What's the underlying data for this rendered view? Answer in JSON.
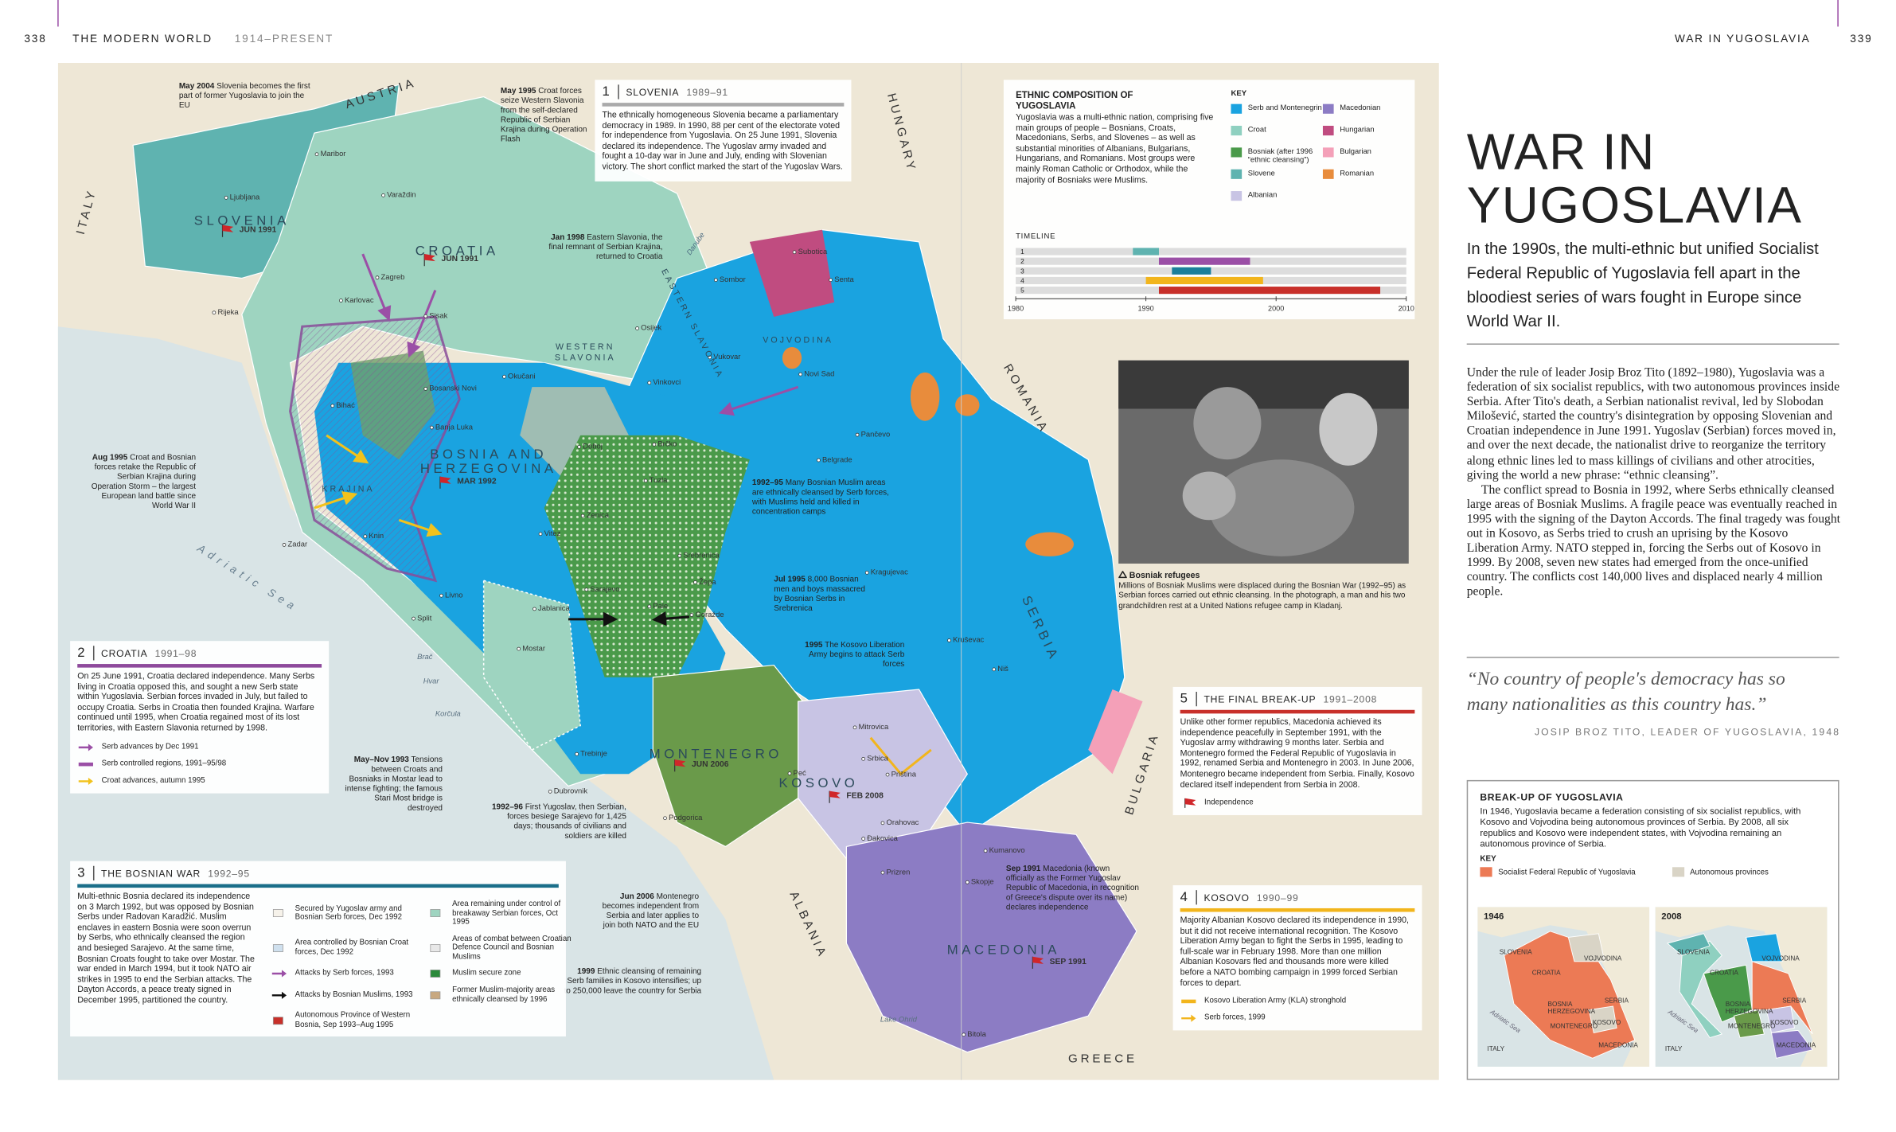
{
  "header": {
    "left_page": "338",
    "left_title": "THE MODERN WORLD",
    "left_period": "1914–PRESENT",
    "right_title": "WAR IN YUGOSLAVIA",
    "right_page": "339"
  },
  "article": {
    "title": "WAR IN YUGOSLAVIA",
    "intro": "In the 1990s, the multi-ethnic but unified Socialist Federal Republic of Yugoslavia fell apart in the bloodiest series of wars fought in Europe since World War II.",
    "body": [
      "Under the rule of leader Josip Broz Tito (1892–1980), Yugoslavia was a federation of six socialist republics, with two autonomous provinces inside Serbia. After Tito's death, a Serbian nationalist revival, led by Slobodan Milošević, started the country's disintegration by opposing Slovenian and Croatian independence in June 1991. Yugoslav (Serbian) forces moved in, and over the next decade, the nationalist drive to reorganize the territory along ethnic lines led to mass killings of civilians and other atrocities, giving the world a new phrase: “ethnic cleansing”.",
      "The conflict spread to Bosnia in 1992, where Serbs ethnically cleansed large areas of Bosniak Muslims. A fragile peace was eventually reached in 1995 with the signing of the Dayton Accords. The final tragedy was fought out in Kosovo, as Serbs tried to crush an uprising by the Kosovo Liberation Army. NATO stepped in, forcing the Serbs out of Kosovo in 1999. By 2008, seven new states had emerged from the once-unified country. The conflicts cost 140,000 lives and displaced nearly 4 million people."
    ],
    "quote": "“No country of people's democracy has so many nationalities as this country has.”",
    "quote_source": "JOSIP BROZ TITO, LEADER OF YUGOSLAVIA, 1948"
  },
  "breakup_box": {
    "title": "BREAK-UP OF YUGOSLAVIA",
    "text": "In 1946, Yugoslavia became a federation consisting of six socialist republics, with Kosovo and Vojvodina being autonomous provinces of Serbia. By 2008, all six republics and Kosovo were independent states, with Vojvodina remaining an autonomous province of Serbia.",
    "key_title": "KEY",
    "key": [
      {
        "label": "Socialist Federal Republic of Yugoslavia",
        "color": "#ec7a55"
      },
      {
        "label": "Autonomous provinces",
        "color": "#d9d4c6"
      }
    ],
    "maps": [
      {
        "year": "1946",
        "labels": [
          "SLOVENIA",
          "CROATIA",
          "VOJVODINA",
          "BOSNIA HERZEGOVINA",
          "SERBIA",
          "MONTENEGRO",
          "KOSOVO",
          "MACEDONIA",
          "Adriatic Sea",
          "ITALY"
        ]
      },
      {
        "year": "2008",
        "labels": [
          "SLOVENIA",
          "CROATIA",
          "VOJVODINA",
          "BOSNIA HERZEGOVINA",
          "SERBIA",
          "MONTENEGRO",
          "KOSOVO",
          "MACEDONIA",
          "Adriatic Sea",
          "ITALY"
        ]
      }
    ]
  },
  "ethnic_box": {
    "title": "ETHNIC COMPOSITION OF YUGOSLAVIA",
    "text": "Yugoslavia was a multi-ethnic nation, comprising five main groups of people – Bosnians, Croats, Macedonians, Serbs, and Slovenes – as well as substantial minorities of Albanians, Bulgarians, Hungarians, and Romanians. Most groups were mainly Roman Catholic or Orthodox, while the majority of Bosniaks were Muslims.",
    "key_title": "KEY",
    "key": [
      {
        "label": "Serb and Montenegrin",
        "color": "#1aa3e0"
      },
      {
        "label": "Croat",
        "color": "#8fd0c0"
      },
      {
        "label": "Bosniak (after 1996 “ethnic cleansing”)",
        "color": "#4a9a4a"
      },
      {
        "label": "Slovene",
        "color": "#5fb3b0"
      },
      {
        "label": "Albanian",
        "color": "#c8c4e4"
      },
      {
        "label": "Macedonian",
        "color": "#8c7cc4"
      },
      {
        "label": "Hungarian",
        "color": "#c04c80"
      },
      {
        "label": "Bulgarian",
        "color": "#f4a0b8"
      },
      {
        "label": "Romanian",
        "color": "#e88c3c"
      }
    ],
    "timeline": {
      "title": "TIMELINE",
      "xlim": [
        1980,
        2010
      ],
      "xticks": [
        1980,
        1990,
        2000,
        2010
      ],
      "rows": [
        {
          "label": "1",
          "start": 1989,
          "end": 1991,
          "color": "#5fb3b0"
        },
        {
          "label": "2",
          "start": 1991,
          "end": 1998,
          "color": "#9b4fa6"
        },
        {
          "label": "3",
          "start": 1992,
          "end": 1995,
          "color": "#1a7f9a"
        },
        {
          "label": "4",
          "start": 1990,
          "end": 1999,
          "color": "#f2b51c"
        },
        {
          "label": "5",
          "start": 1991,
          "end": 2008,
          "color": "#c8302a"
        }
      ]
    }
  },
  "photo": {
    "title": "Bosniak refugees",
    "caption": "Millions of Bosniak Muslims were displaced during the Bosnian War (1992–95) as Serbian forces carried out ethnic cleansing. In the photograph, a man and his two grandchildren rest at a United Nations refugee camp in Kladanj."
  },
  "sections": [
    {
      "number": "1",
      "title": "SLOVENIA",
      "dates": "1989–91",
      "text": "The ethnically homogeneous Slovenia became a parliamentary democracy in 1989. In 1990, 88 per cent of the electorate voted for independence from Yugoslavia. On 25 June 1991, Slovenia declared its independence. The Yugoslav army invaded and fought a 10-day war in June and July, ending with Slovenian victory. The short conflict marked the start of the Yugoslav Wars.",
      "legend": []
    },
    {
      "number": "2",
      "title": "CROATIA",
      "dates": "1991–98",
      "text": "On 25 June 1991, Croatia declared independence. Many Serbs living in Croatia opposed this, and sought a new Serb state within Yugoslavia. Serbian forces invaded in July, but failed to occupy Croatia. Serbs in Croatia then founded Krajina. Warfare continued until 1995, when Croatia regained most of its lost territories, with Eastern Slavonia returned by 1998.",
      "legend": [
        "Serb advances by Dec 1991",
        "Serb controlled regions, 1991–95/98",
        "Croat advances, autumn 1995"
      ]
    },
    {
      "number": "3",
      "title": "THE BOSNIAN WAR",
      "dates": "1992–95",
      "text": "Multi-ethnic Bosnia declared its independence on 3 March 1992, but was opposed by Bosnian Serbs under Radovan Karadžić. Muslim enclaves in eastern Bosnia were soon overrun by Serbs, who ethnically cleansed the region and besieged Sarajevo. At the same time, Bosnian Croats fought to take over Mostar. The war ended in March 1994, but it took NATO air strikes in 1995 to end the Serbian attacks. The Dayton Accords, a peace treaty signed in December 1995, partitioned the country.",
      "legend": [
        "Secured by Yugoslav army and Bosnian Serb forces, Dec 1992",
        "Area controlled by Bosnian Croat forces, Dec 1992",
        "Attacks by Serb forces, 1993",
        "Attacks by Bosnian Muslims, 1993",
        "Autonomous Province of Western Bosnia, Sep 1993–Aug 1995",
        "Area remaining under control of breakaway Serbian forces, Oct 1995",
        "Areas of combat between Croatian Defence Council and Bosnian Muslims",
        "Muslim secure zone",
        "Former Muslim-majority areas ethnically cleansed by 1996"
      ]
    },
    {
      "number": "5",
      "title": "THE FINAL BREAK-UP",
      "dates": "1991–2008",
      "text": "Unlike other former republics, Macedonia achieved its independence peacefully in September 1991, with the Yugoslav army withdrawing 9 months later. Serbia and Montenegro formed the Federal Republic of Yugoslavia in 1992, renamed Serbia and Montenegro in 2003. In June 2006, Montenegro became independent from Serbia. Finally, Kosovo declared itself independent from Serbia in 2008.",
      "legend": [
        "Independence"
      ]
    },
    {
      "number": "4",
      "title": "KOSOVO",
      "dates": "1990–99",
      "text": "Majority Albanian Kosovo declared its independence in 1990, but it did not receive international recognition. The Kosovo Liberation Army began to fight the Serbs in 1995, leading to full-scale war in February 1998. More than one million Albanian Kosovars fled and thousands more were killed before a NATO bombing campaign in 1999 forced Serbian forces to depart.",
      "legend": [
        "Kosovo Liberation Army (KLA) stronghold",
        "Serb forces, 1999"
      ]
    }
  ],
  "map": {
    "regions": [
      "AUSTRIA",
      "ITALY",
      "HUNGARY",
      "ROMANIA",
      "BULGARIA",
      "ALBANIA",
      "GREECE",
      "Adriatic Sea",
      "SLOVENIA",
      "CROATIA",
      "BOSNIA AND HERZEGOVINA",
      "VOJVODINA",
      "SERBIA",
      "MONTENEGRO",
      "KOSOVO",
      "MACEDONIA",
      "KRAJINA",
      "WESTERN SLAVONIA",
      "EASTERN SLAVONIA",
      "Danube"
    ],
    "dates": [
      "JUN 1991",
      "JUN 1991",
      "MAR 1992",
      "JUN 2006",
      "FEB 2008",
      "SEP 1991"
    ],
    "cities": [
      "Maribor",
      "Ljubljana",
      "Varaždin",
      "Zagreb",
      "Rijeka",
      "Karlovac",
      "Sisak",
      "Okučani",
      "Osijek",
      "Vukovar",
      "Vinkovci",
      "Subotica",
      "Sombor",
      "Senta",
      "Novi Sad",
      "Belgrade",
      "Pančevo",
      "Bihać",
      "Bosanski Novi",
      "Banja Luka",
      "Doboj",
      "Brčko",
      "Tuzla",
      "Zenica",
      "Vitez",
      "Zadar",
      "Knin",
      "Split",
      "Livno",
      "Jablanica",
      "Mostar",
      "Sarajevo",
      "Pale",
      "Goražde",
      "Srebrenica",
      "Žepa",
      "Kragujevac",
      "Kruševac",
      "Niš",
      "Dubrovnik",
      "Trebinje",
      "Podgorica",
      "Peć",
      "Mitrovica",
      "Srbica",
      "Priština",
      "Orahovac",
      "Đakovica",
      "Prizren",
      "Skopje",
      "Kumanovo",
      "Bitola",
      "Brač",
      "Hvar",
      "Korčula",
      "Lake Ohrid"
    ],
    "annotations": [
      {
        "date": "May 2004",
        "text": "Slovenia becomes the first part of former Yugoslavia to join the EU"
      },
      {
        "date": "May 1995",
        "text": "Croat forces seize Western Slavonia from the self-declared Republic of Serbian Krajina during Operation Flash"
      },
      {
        "date": "Jan 1998",
        "text": "Eastern Slavonia, the final remnant of Serbian Krajina, returned to Croatia"
      },
      {
        "date": "Aug 1995",
        "text": "Croat and Bosnian forces retake the Republic of Serbian Krajina during Operation Storm – the largest European land battle since World War II"
      },
      {
        "date": "1992–95",
        "text": "Many Bosnian Muslim areas are ethnically cleansed by Serb forces, with Muslims held and killed in concentration camps"
      },
      {
        "date": "Jul 1995",
        "text": "8,000 Bosnian men and boys massacred by Bosnian Serbs in Srebrenica"
      },
      {
        "date": "1995",
        "text": "The Kosovo Liberation Army begins to attack Serb forces"
      },
      {
        "date": "May–Nov 1993",
        "text": "Tensions between Croats and Bosniaks in Mostar lead to intense fighting; the famous Stari Most bridge is destroyed"
      },
      {
        "date": "1992–96",
        "text": "First Yugoslav, then Serbian, forces besiege Sarajevo for 1,425 days; thousands of civilians and soldiers are killed"
      },
      {
        "date": "Jun 2006",
        "text": "Montenegro becomes independent from Serbia and later applies to join both NATO and the EU"
      },
      {
        "date": "1999",
        "text": "Ethnic cleansing of remaining Serb families in Kosovo intensifies; up to 250,000 leave the country for Serbia"
      },
      {
        "date": "Sep 1991",
        "text": "Macedonia (known officially as the Former Yugoslav Republic of Macedonia, in recognition of Greece's dispute over its name) declares independence"
      }
    ]
  }
}
